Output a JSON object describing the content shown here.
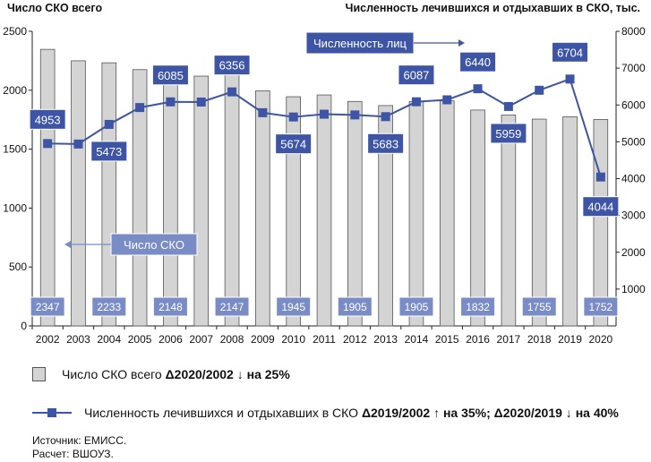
{
  "header": {
    "left_title": "Число СКО всего",
    "right_title": "Численность лечившихся и отдыхавших в СКО, тыс."
  },
  "chart_data": {
    "type": "bar+line",
    "categories": [
      "2002",
      "2003",
      "2004",
      "2005",
      "2006",
      "2007",
      "2008",
      "2009",
      "2010",
      "2011",
      "2012",
      "2013",
      "2014",
      "2015",
      "2016",
      "2017",
      "2018",
      "2019",
      "2020"
    ],
    "bar_series": {
      "name": "Число СКО всего",
      "axis": "left",
      "values": [
        2347,
        2250,
        2233,
        2175,
        2148,
        2120,
        2147,
        1995,
        1945,
        1960,
        1905,
        1870,
        1905,
        1910,
        1832,
        1790,
        1755,
        1775,
        1752
      ],
      "labeled": {
        "2002": "2347",
        "2004": "2233",
        "2006": "2148",
        "2008": "2147",
        "2010": "1945",
        "2012": "1905",
        "2014": "1905",
        "2016": "1832",
        "2018": "1755",
        "2020": "1752"
      }
    },
    "line_series": {
      "name": "Численность лечившихся и отдыхавших в СКО",
      "axis": "right",
      "values": [
        4953,
        4940,
        5473,
        5930,
        6085,
        6080,
        6356,
        5790,
        5674,
        5750,
        5730,
        5683,
        6087,
        6140,
        6440,
        5959,
        6400,
        6704,
        4044
      ],
      "labeled": {
        "2002": "4953",
        "2004": "5473",
        "2006": "6085",
        "2008": "6356",
        "2010": "5674",
        "2013": "5683",
        "2014": "6087",
        "2016": "6440",
        "2017": "5959",
        "2019": "6704",
        "2020": "4044"
      }
    },
    "left_axis": {
      "min": 0,
      "max": 2500,
      "ticks": [
        "0",
        "500",
        "1000",
        "1500",
        "2000",
        "2500"
      ]
    },
    "right_axis": {
      "min": 0,
      "max": 8000,
      "ticks": [
        "1000",
        "2000",
        "3000",
        "4000",
        "5000",
        "6000",
        "7000",
        "8000"
      ]
    },
    "annotations": {
      "line_label": "Численность лиц",
      "bar_label": "Число СКО"
    },
    "colors": {
      "bar_fill": "#d4d4d4",
      "bar_stroke": "#555555",
      "line": "#3d55a4",
      "label_box": "#3d55a4",
      "bar_label_box": "#7a8cc6"
    },
    "grid": false
  },
  "legend": {
    "bars": {
      "text": "Число СКО всего ",
      "delta": "Δ2020/2002 ↓ на 25%"
    },
    "line": {
      "text": "Численность лечившихся и отдыхавших в СКО ",
      "delta": "Δ2019/2002 ↑ на 35%; Δ2020/2019 ↓ на 40%"
    }
  },
  "footnotes": {
    "source": "Источник: ЕМИСС.",
    "calc": "Расчет: ВШОУЗ."
  }
}
